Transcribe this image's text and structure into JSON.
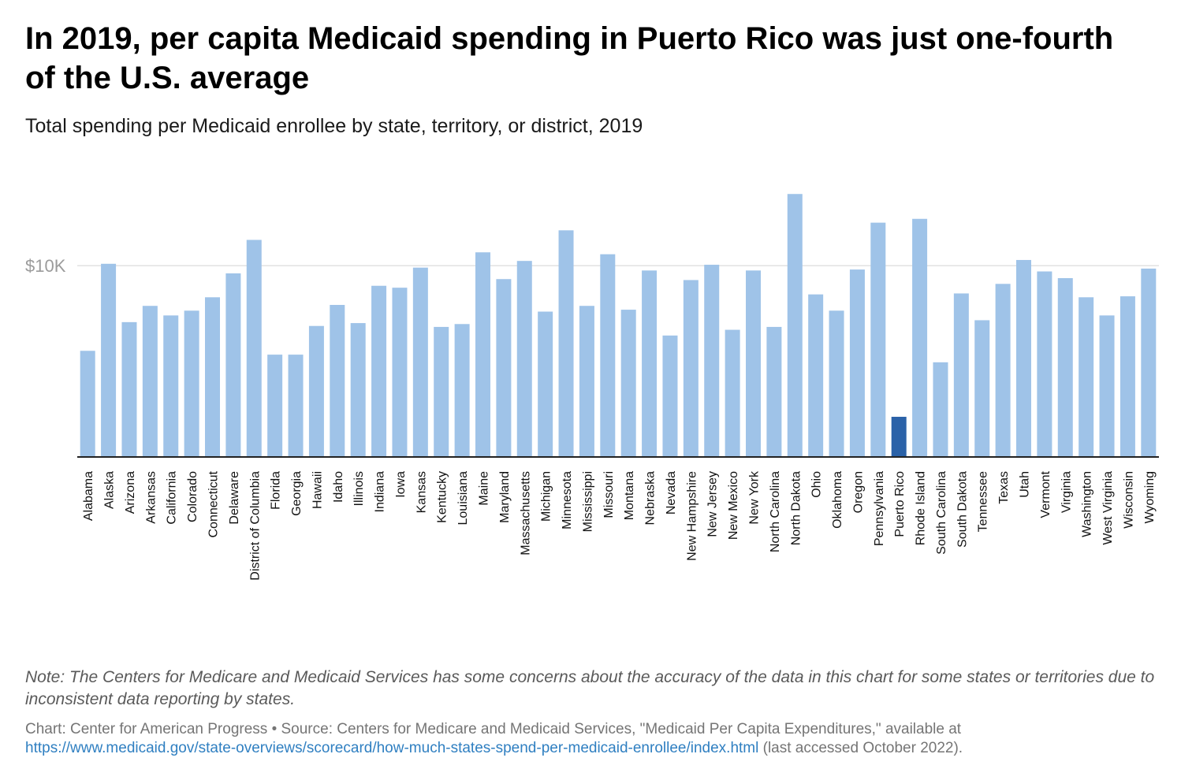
{
  "header": {
    "title": "In 2019, per capita Medicaid spending in Puerto Rico was just one-fourth of the U.S. average",
    "subtitle": "Total spending per Medicaid enrollee by state, territory, or district, 2019"
  },
  "chart_data": {
    "type": "bar",
    "ylim": [
      0,
      14500
    ],
    "yticks": [
      {
        "value": 10000,
        "label": "$10K"
      }
    ],
    "grid": true,
    "highlight_category": "Puerto Rico",
    "colors": {
      "bar": "#9fc3e8",
      "highlight": "#2b62a8",
      "grid": "#e1e1e1",
      "axis": "#222222",
      "tick_label": "#9b9b9b"
    },
    "categories": [
      "Alabama",
      "Alaska",
      "Arizona",
      "Arkansas",
      "California",
      "Colorado",
      "Connecticut",
      "Delaware",
      "District of Columbia",
      "Florida",
      "Georgia",
      "Hawaii",
      "Idaho",
      "Illinois",
      "Indiana",
      "Iowa",
      "Kansas",
      "Kentucky",
      "Louisiana",
      "Maine",
      "Maryland",
      "Massachusetts",
      "Michigan",
      "Minnesota",
      "Mississippi",
      "Missouri",
      "Montana",
      "Nebraska",
      "Nevada",
      "New Hampshire",
      "New Jersey",
      "New Mexico",
      "New York",
      "North Carolina",
      "North Dakota",
      "Ohio",
      "Oklahoma",
      "Oregon",
      "Pennsylvania",
      "Puerto Rico",
      "Rhode Island",
      "South Carolina",
      "South Dakota",
      "Tennessee",
      "Texas",
      "Utah",
      "Vermont",
      "Virginia",
      "Washington",
      "West Virginia",
      "Wisconsin",
      "Wyoming"
    ],
    "values": [
      5550,
      10100,
      7050,
      7900,
      7400,
      7650,
      8350,
      9600,
      11350,
      5350,
      5350,
      6850,
      7950,
      7000,
      8950,
      8850,
      9900,
      6800,
      6950,
      10700,
      9300,
      10250,
      7600,
      11850,
      7900,
      10600,
      7700,
      9750,
      6350,
      9250,
      10050,
      6650,
      9750,
      6800,
      13750,
      8500,
      7650,
      9800,
      12250,
      2100,
      12450,
      4950,
      8550,
      7150,
      9050,
      10300,
      9700,
      9350,
      8350,
      7400,
      8400,
      9850
    ]
  },
  "footer": {
    "note": "Note: The Centers for Medicare and Medicaid Services has some concerns about the accuracy of the data in this chart for some states or territories due to inconsistent data reporting by states.",
    "credit_prefix": "Chart: Center for American Progress • Source: Centers for Medicare and Medicaid Services, \"Medicaid Per Capita Expenditures,\" available at",
    "credit_link": "https://www.medicaid.gov/state-overviews/scorecard/how-much-states-spend-per-medicaid-enrollee/index.html",
    "credit_suffix": " (last accessed October 2022)."
  }
}
